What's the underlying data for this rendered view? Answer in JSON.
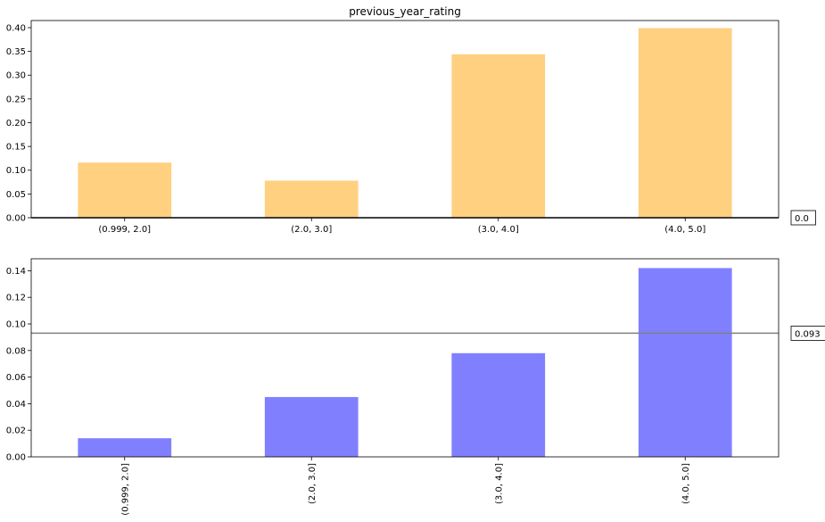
{
  "chart_data": [
    {
      "type": "bar",
      "title": "previous_year_rating",
      "categories": [
        "(0.999, 2.0]",
        "(2.0, 3.0]",
        "(3.0, 4.0]",
        "(4.0, 5.0]"
      ],
      "values": [
        0.116,
        0.078,
        0.344,
        0.399
      ],
      "ylim": [
        0,
        0.415
      ],
      "yticks": [
        "0.00",
        "0.05",
        "0.10",
        "0.15",
        "0.20",
        "0.25",
        "0.30",
        "0.35",
        "0.40"
      ],
      "xtick_rotation": "horizontal",
      "reference_line": {
        "value": 0.0,
        "label": "0.0",
        "color": "#000000"
      },
      "color": "#ffd080",
      "grid": false
    },
    {
      "type": "bar",
      "title": "",
      "categories": [
        "(0.999, 2.0]",
        "(2.0, 3.0]",
        "(3.0, 4.0]",
        "(4.0, 5.0]"
      ],
      "values": [
        0.014,
        0.045,
        0.078,
        0.142
      ],
      "ylim": [
        0,
        0.149
      ],
      "yticks": [
        "0.00",
        "0.02",
        "0.04",
        "0.06",
        "0.08",
        "0.10",
        "0.12",
        "0.14"
      ],
      "xtick_rotation": "vertical",
      "reference_line": {
        "value": 0.093,
        "label": "0.093",
        "color": "#808080"
      },
      "color": "#8080ff",
      "grid": false
    }
  ]
}
